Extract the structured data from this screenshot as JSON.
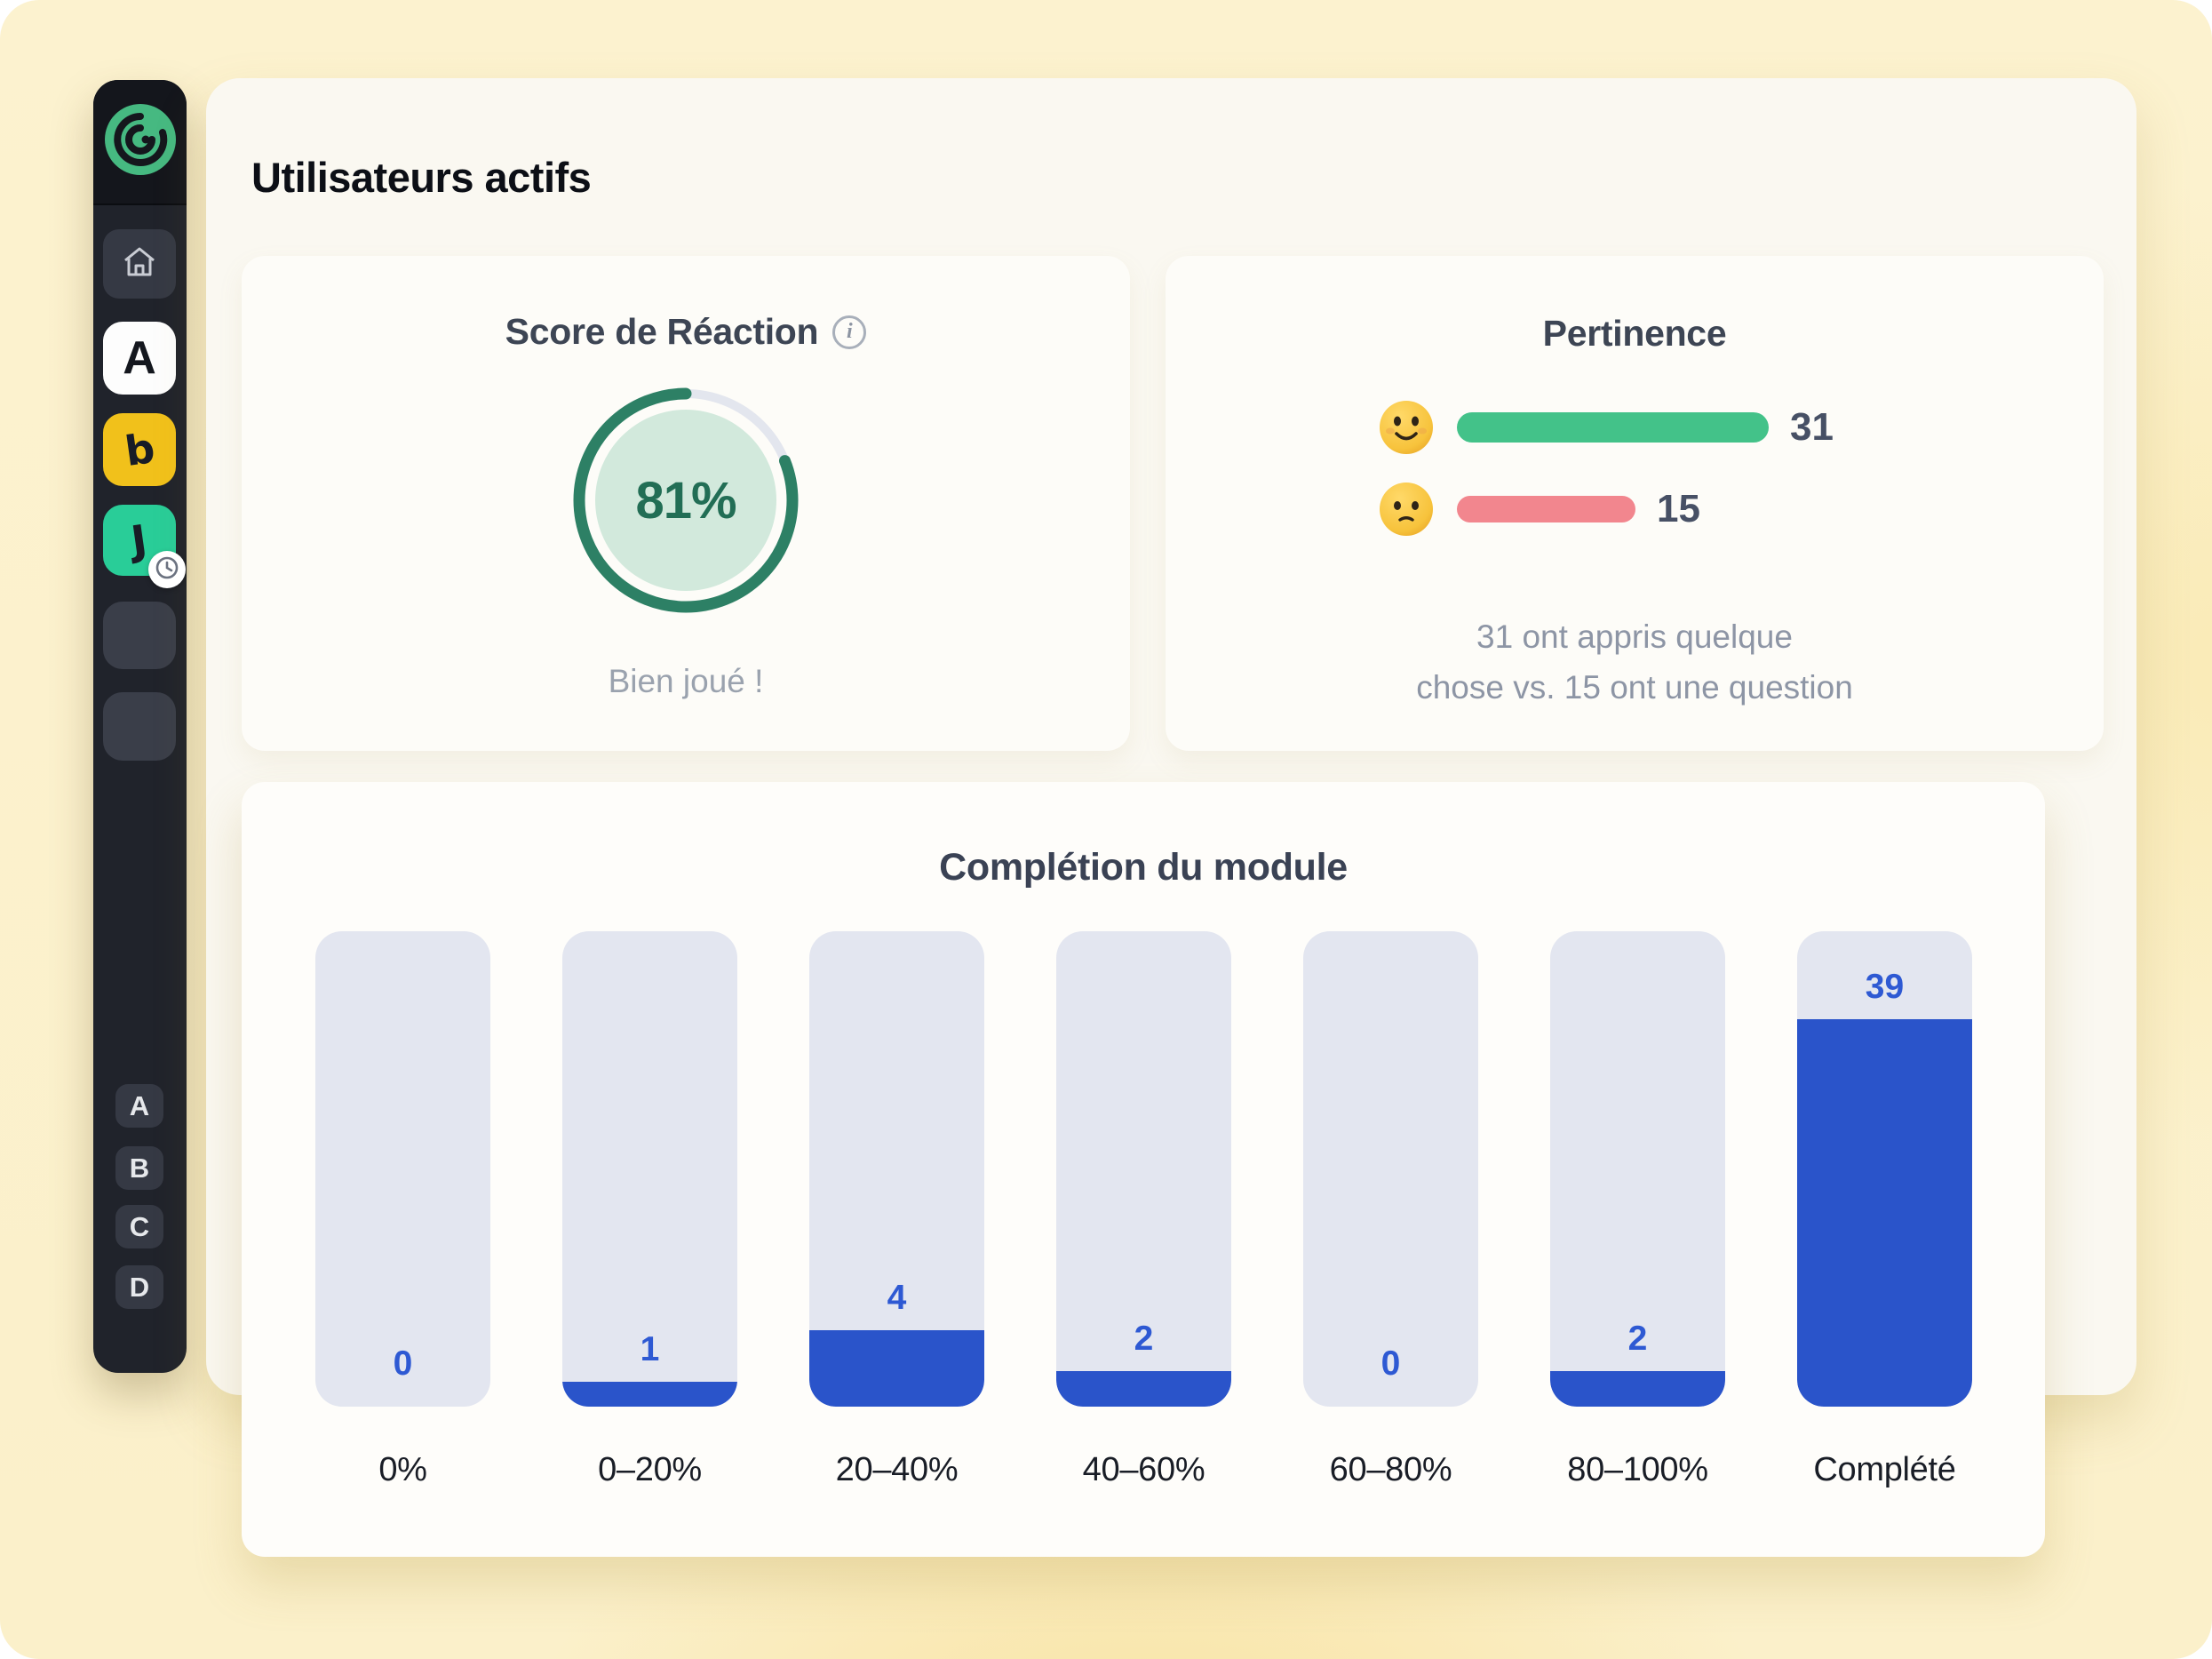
{
  "window": {
    "background_color": "#fbf1ce",
    "panel_color": "#faf8f1",
    "card_color": "#fdfcf8"
  },
  "sidebar": {
    "logo_icon": "brand-spiral-logo",
    "nav_items": [
      {
        "id": "home",
        "icon": "home-icon"
      },
      {
        "id": "app-a",
        "label": "A"
      },
      {
        "id": "app-yellow",
        "icon": "brand-b-icon",
        "glyph": "b",
        "color": "#f1c11b"
      },
      {
        "id": "app-green",
        "icon": "brand-j-icon",
        "glyph": "J",
        "color": "#29cd98",
        "badge_icon": "clock-icon"
      }
    ],
    "placeholder_count": 2,
    "letter_items": [
      "A",
      "B",
      "C",
      "D"
    ]
  },
  "page": {
    "title": "Utilisateurs actifs"
  },
  "reaction_card": {
    "title": "Score de Réaction",
    "info_icon": "info-icon",
    "info_glyph": "i",
    "score_percent": 81,
    "score_label": "81%",
    "caption": "Bien joué !",
    "ring_color": "#2d8065",
    "ring_track_color": "#e3e6ee",
    "center_fill_color": "#d2e9dc",
    "value_text_color": "#226e55"
  },
  "pertinence_card": {
    "title": "Pertinence",
    "rows": [
      {
        "emoji": "slightly-smiling-face-emoji",
        "value": "31",
        "value_num": 31,
        "bar_color": "#43c289"
      },
      {
        "emoji": "slightly-frowning-face-emoji",
        "value": "15",
        "value_num": 15,
        "bar_color": "#f2868e"
      }
    ],
    "caption_line1": "31 ont appris quelque",
    "caption_line2": "chose vs. 15 ont une question"
  },
  "chart_data": {
    "type": "bar",
    "title": "Complétion du module",
    "categories": [
      "0%",
      "0–20%",
      "20–40%",
      "40–60%",
      "60–80%",
      "80–100%",
      "Complété"
    ],
    "values": [
      0,
      1,
      4,
      2,
      0,
      2,
      39
    ],
    "fill_pct_of_track": [
      0,
      5.2,
      16.1,
      7.5,
      0,
      7.5,
      81.5
    ],
    "bar_color": "#2a54ca",
    "track_color": "#e3e6f0",
    "value_label_color": "#2e59d3",
    "category_label_color": "#191d26",
    "ylim": [
      0,
      48
    ],
    "grid": false,
    "legend": false,
    "orientation": "vertical"
  }
}
